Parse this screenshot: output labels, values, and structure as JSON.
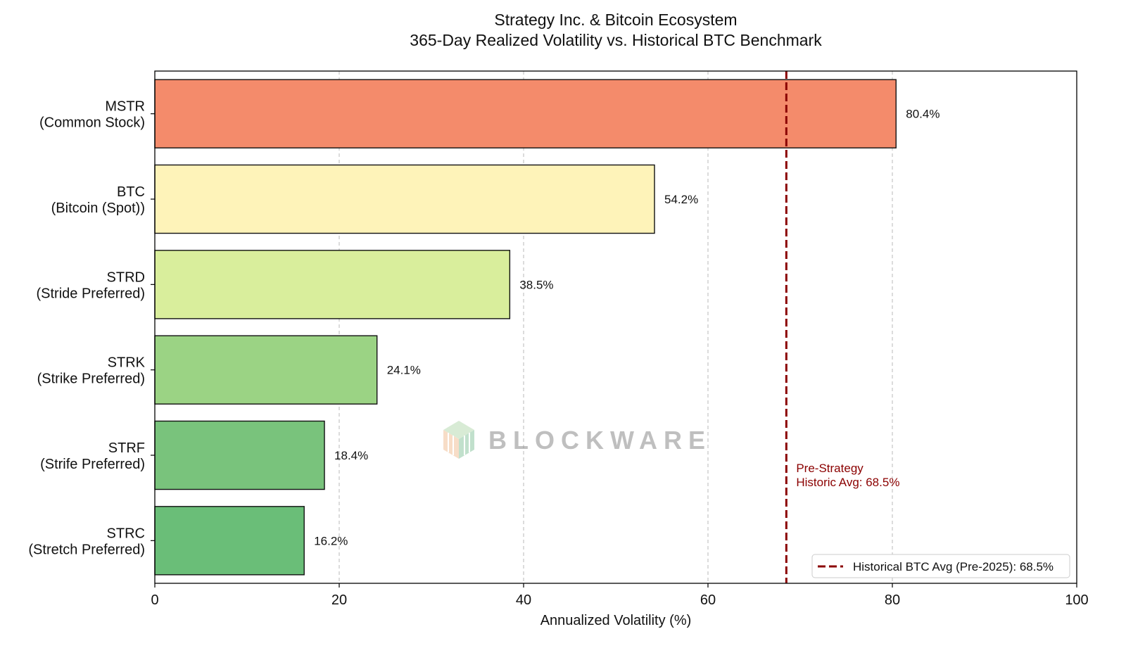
{
  "chart_data": {
    "type": "bar",
    "orientation": "horizontal",
    "title_line1": "Strategy Inc. & Bitcoin Ecosystem",
    "title_line2": "365-Day Realized Volatility vs. Historical BTC Benchmark",
    "xlabel": "Annualized Volatility (%)",
    "ylabel": "",
    "xlim": [
      0,
      100
    ],
    "xticks": [
      0,
      20,
      40,
      60,
      80,
      100
    ],
    "grid": "vertical-dashed",
    "categories": [
      {
        "ticker": "MSTR",
        "name": "(Common Stock)"
      },
      {
        "ticker": "BTC",
        "name": "(Bitcoin (Spot))"
      },
      {
        "ticker": "STRD",
        "name": "(Stride Preferred)"
      },
      {
        "ticker": "STRK",
        "name": "(Strike Preferred)"
      },
      {
        "ticker": "STRF",
        "name": "(Strife Preferred)"
      },
      {
        "ticker": "STRC",
        "name": "(Stretch Preferred)"
      }
    ],
    "values": [
      80.4,
      54.2,
      38.5,
      24.1,
      18.4,
      16.2
    ],
    "value_labels": [
      "80.4%",
      "54.2%",
      "38.5%",
      "24.1%",
      "18.4%",
      "16.2%"
    ],
    "bar_colors": [
      "#f48b6b",
      "#fef3b9",
      "#d9ee9c",
      "#9bd384",
      "#79c37c",
      "#6abe78"
    ],
    "reference_line": {
      "value": 68.5,
      "color": "#8b0000",
      "style": "dashed",
      "annotation_line1": "Pre-Strategy",
      "annotation_line2": "Historic Avg: 68.5%"
    },
    "legend": {
      "position": "lower-right",
      "label": "Historical BTC Avg (Pre-2025): 68.5%"
    }
  },
  "watermark": {
    "text": "BLOCKWARE"
  }
}
